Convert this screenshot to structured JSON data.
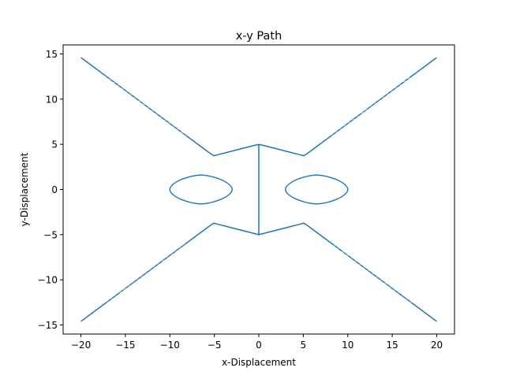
{
  "chart_data": {
    "type": "line",
    "title": "x-y Path",
    "xlabel": "x-Displacement",
    "ylabel": "y-Displacement",
    "xlim": [
      -22,
      22
    ],
    "ylim": [
      -16,
      16
    ],
    "xticks": [
      -20,
      -15,
      -10,
      -5,
      0,
      5,
      10,
      15,
      20
    ],
    "yticks": [
      -15,
      -10,
      -5,
      0,
      5,
      10,
      15
    ],
    "grid": false,
    "series": [
      {
        "color": "#1f77b4",
        "description_shape": "figure-eight (lemniscate-like) dense path",
        "x_range": [
          -20,
          20
        ],
        "y_range": [
          -14,
          14
        ],
        "lobe_centers_x": [
          -11.5,
          11.5
        ],
        "crossing_x": 0,
        "inner_hole_x": [
          [
            -10,
            -3
          ],
          [
            3,
            10
          ]
        ],
        "inner_hole_y": [
          -1.6,
          1.6
        ],
        "waist_half_height": 5
      }
    ]
  }
}
